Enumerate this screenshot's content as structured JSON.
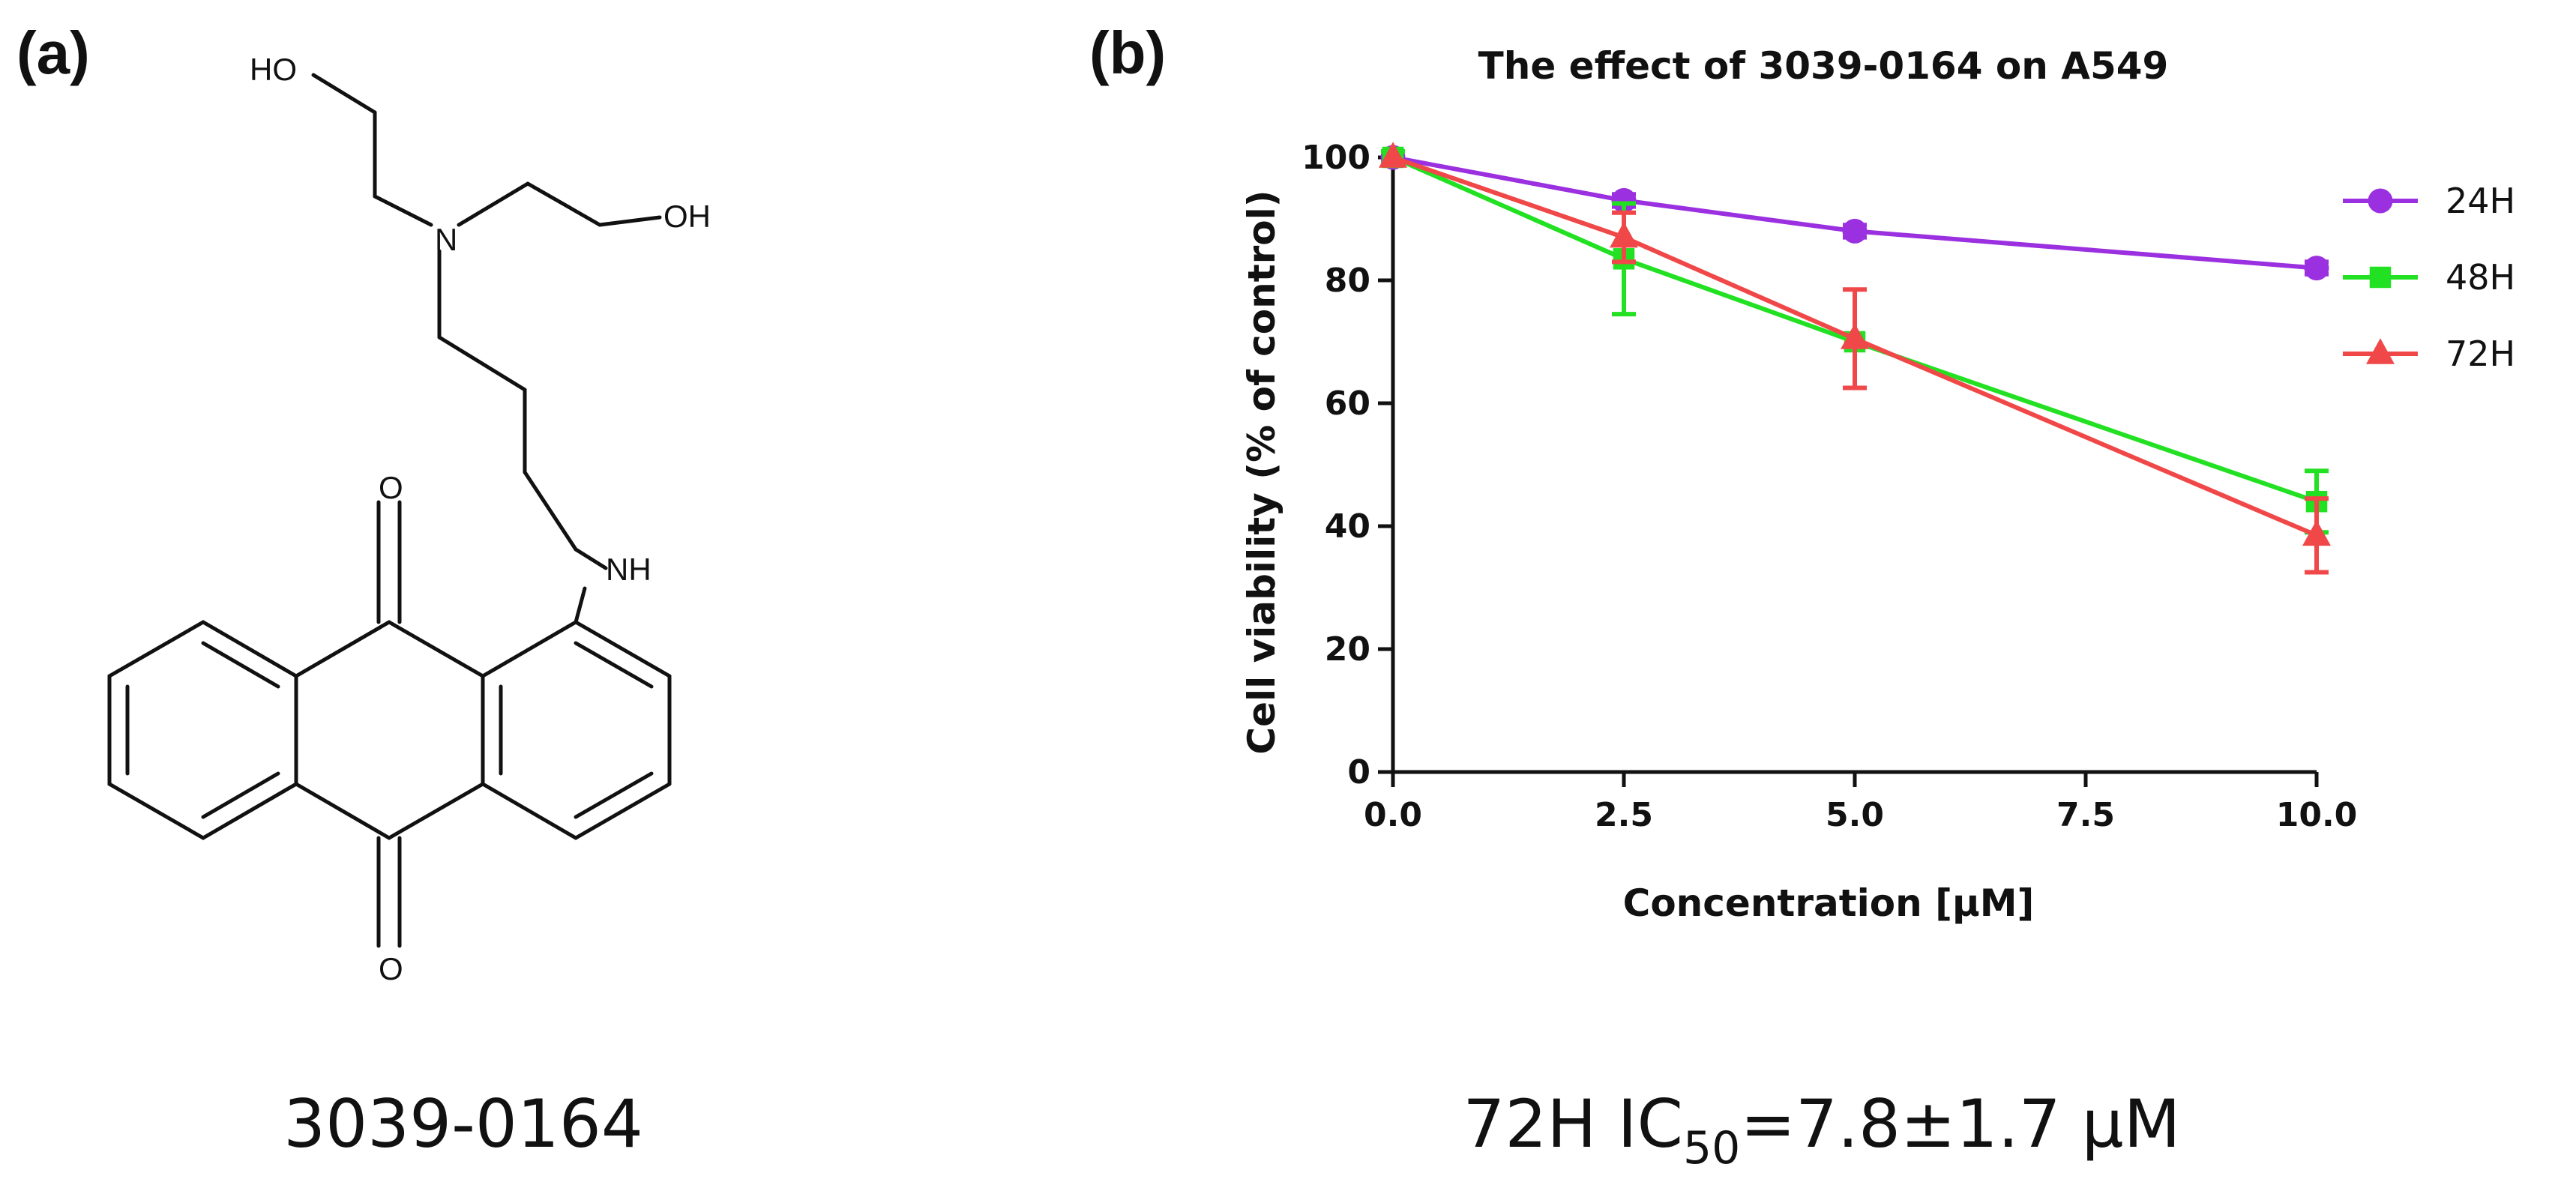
{
  "panel_a": {
    "label": "(a)",
    "compound_name": "3039-0164",
    "atoms": {
      "ho_top": "HO",
      "oh_right": "OH",
      "n": "N",
      "nh": "NH",
      "o_top": "O",
      "o_bottom": "O"
    }
  },
  "panel_b": {
    "label": "(b)",
    "ic50": {
      "prefix": "72H  IC",
      "subscript": "50",
      "suffix": "=7.8±1.7 μM"
    }
  },
  "chart_data": {
    "type": "line",
    "title": "The effect of 3039-0164 on A549",
    "xlabel": "Concentration [μM]",
    "ylabel": "Cell viability (% of control)",
    "xlim": [
      0,
      10
    ],
    "ylim": [
      0,
      100
    ],
    "x_ticks": [
      0,
      2.5,
      5,
      7.5,
      10
    ],
    "x_tick_labels": [
      "0.0",
      "2.5",
      "5.0",
      "7.5",
      "10.0"
    ],
    "y_ticks": [
      0,
      20,
      40,
      60,
      80,
      100
    ],
    "y_tick_labels": [
      "0",
      "20",
      "40",
      "60",
      "80",
      "100"
    ],
    "grid": false,
    "legend_position": "top-right",
    "series": [
      {
        "name": "24H",
        "color": "#9b30e0",
        "marker": "circle",
        "x": [
          0,
          2.5,
          5,
          10
        ],
        "y": [
          100,
          93,
          88,
          82
        ],
        "err": [
          0,
          1,
          1,
          1
        ]
      },
      {
        "name": "48H",
        "color": "#22e022",
        "marker": "square",
        "x": [
          0,
          2.5,
          5,
          10
        ],
        "y": [
          100,
          83.5,
          70,
          44
        ],
        "err": [
          1,
          9,
          0,
          5
        ]
      },
      {
        "name": "72H",
        "color": "#f04848",
        "marker": "triangle",
        "x": [
          0,
          2.5,
          5,
          10
        ],
        "y": [
          100,
          87,
          70.5,
          38.5
        ],
        "err": [
          0,
          4,
          8,
          6
        ]
      }
    ]
  }
}
